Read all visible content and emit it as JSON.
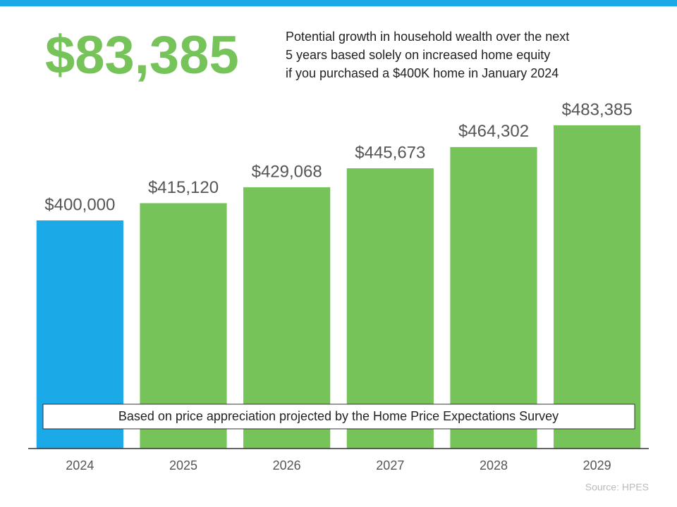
{
  "chart_data": {
    "type": "bar",
    "title": "$83,385",
    "subtitle": [
      "Potential growth in household wealth over the next",
      "5 years based solely on increased home equity",
      "if you purchased a $400K home in January 2024"
    ],
    "categories": [
      "2024",
      "2025",
      "2026",
      "2027",
      "2028",
      "2029"
    ],
    "values": [
      400000,
      415120,
      429068,
      445673,
      464302,
      483385
    ],
    "value_labels": [
      "$400,000",
      "$415,120",
      "$429,068",
      "$445,673",
      "$464,302",
      "$483,385"
    ],
    "colors": [
      "#1ba9e8",
      "#76c35a",
      "#76c35a",
      "#76c35a",
      "#76c35a",
      "#76c35a"
    ],
    "ylim": [
      200000,
      500000
    ],
    "note": "Based on price appreciation projected by the Home Price Expectations Survey",
    "source": "Source: HPES"
  }
}
